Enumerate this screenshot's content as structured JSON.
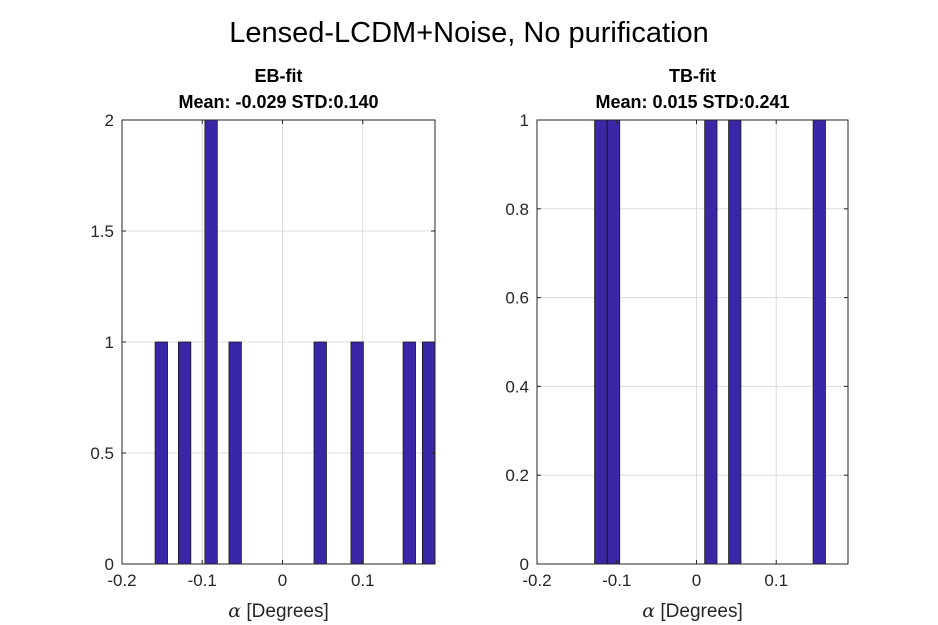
{
  "figure_title": "Lensed-LCDM+Noise, No purification",
  "bar_color": "#3a27a8",
  "chart_data": [
    {
      "type": "bar",
      "title": "EB-fit",
      "subtitle": "Mean: -0.029 STD:0.140",
      "xlabel_symbol": "α",
      "xlabel": " [Degrees]",
      "xlim": [
        -0.2,
        0.19
      ],
      "ylim": [
        0,
        2
      ],
      "xticks": [
        -0.2,
        -0.1,
        0,
        0.1
      ],
      "xtick_labels": [
        "-0.2",
        "-0.1",
        "0",
        "0.1"
      ],
      "yticks": [
        0,
        0.5,
        1,
        1.5,
        2
      ],
      "ytick_labels": [
        "0",
        "0.5",
        "1",
        "1.5",
        "2"
      ],
      "bin_width": 0.0155,
      "x": [
        -0.151,
        -0.122,
        -0.089,
        -0.059,
        0.047,
        0.093,
        0.158,
        0.182
      ],
      "values": [
        1,
        1,
        2,
        1,
        1,
        1,
        1,
        1
      ],
      "grid": true
    },
    {
      "type": "bar",
      "title": "TB-fit",
      "subtitle": "Mean: 0.015 STD:0.241",
      "xlabel_symbol": "α",
      "xlabel": " [Degrees]",
      "xlim": [
        -0.2,
        0.19
      ],
      "ylim": [
        0,
        1
      ],
      "xticks": [
        -0.2,
        -0.1,
        0,
        0.1
      ],
      "xtick_labels": [
        "-0.2",
        "-0.1",
        "0",
        "0.1"
      ],
      "yticks": [
        0,
        0.2,
        0.4,
        0.6,
        0.8,
        1
      ],
      "ytick_labels": [
        "0",
        "0.2",
        "0.4",
        "0.6",
        "0.8",
        "1"
      ],
      "bin_width": 0.0155,
      "x": [
        -0.12,
        -0.104,
        0.018,
        0.048,
        0.154
      ],
      "values": [
        1,
        1,
        1,
        1,
        1
      ],
      "grid": true
    }
  ]
}
